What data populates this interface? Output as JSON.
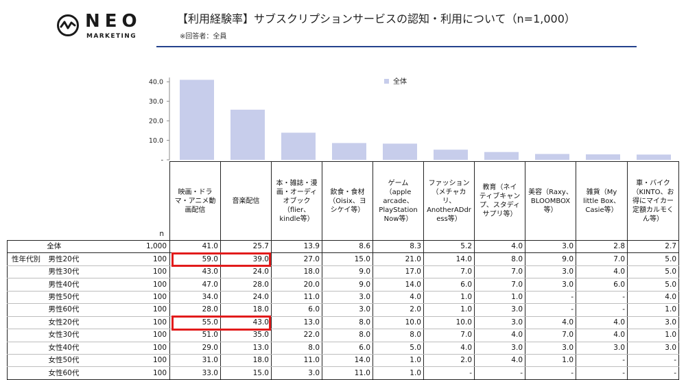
{
  "header": {
    "logo_text": "NEO",
    "logo_sub": "MARKETING",
    "title": "【利用経験率】サブスクリプションサービスの認知・利用について（n=1,000）",
    "subtitle": "※回答者：全員"
  },
  "chart_data": {
    "type": "bar",
    "categories": [
      "映画・ドラマ・アニメ動画配信",
      "音楽配信",
      "本・雑誌・漫画・オーディオブック（flier、kindle等）",
      "飲食・食材（Oisix、ヨシケイ等）",
      "ゲーム（apple arcade、PlayStation Now等）",
      "ファッション（メチャカリ、AnotherADdress等）",
      "教育（ネイティブキャンプ、スタディサプリ等）",
      "美容（Raxy、BLOOMBOX等）",
      "雑貨（My little Box、Casie等）",
      "車・バイク（KINTO、お得にマイカー定額カルモくん等）"
    ],
    "category_lines": [
      [
        "映画・ドラ",
        "マ・アニメ動",
        "画配信"
      ],
      [
        "音楽配信"
      ],
      [
        "本・雑誌・漫",
        "画・オーディ",
        "オブック",
        "（flier、",
        "kindle等）"
      ],
      [
        "飲食・食材",
        "（Oisix、ヨ",
        "シケイ等）"
      ],
      [
        "ゲーム",
        "（apple",
        "arcade、",
        "PlayStation",
        "Now等）"
      ],
      [
        "ファッション",
        "（メチャカ",
        "リ、",
        "AnotherADdr",
        "ess等）"
      ],
      [
        "教育（ネイ",
        "ティブキャン",
        "プ、スタディ",
        "サプリ等）"
      ],
      [
        "美容（Raxy、",
        "BLOOMBOX等）"
      ],
      [
        "雑貨（My",
        "little Box、",
        "Casie等）"
      ],
      [
        "車・バイク",
        "（KINTO、お",
        "得にマイカー",
        "定額カルモく",
        "ん等）"
      ]
    ],
    "series": [
      {
        "name": "全体",
        "values": [
          41.0,
          25.7,
          13.9,
          8.6,
          8.3,
          5.2,
          4.0,
          3.0,
          2.8,
          2.7
        ]
      }
    ],
    "ylim": [
      0,
      45
    ],
    "yticks": [
      0,
      10.0,
      20.0,
      30.0,
      40.0
    ],
    "ytick_labels": [
      "-",
      "10.0",
      "20.0",
      "30.0",
      "40.0"
    ],
    "bar_color": "#c7cdeb",
    "legend": "top-center"
  },
  "table": {
    "n_header": "n",
    "group_label": "性年代別",
    "total_row": {
      "label": "全体",
      "n": "1,000",
      "values": [
        "41.0",
        "25.7",
        "13.9",
        "8.6",
        "8.3",
        "5.2",
        "4.0",
        "3.0",
        "2.8",
        "2.7"
      ]
    },
    "rows": [
      {
        "label": "男性20代",
        "n": "100",
        "values": [
          "59.0",
          "39.0",
          "27.0",
          "15.0",
          "21.0",
          "14.0",
          "8.0",
          "9.0",
          "7.0",
          "5.0"
        ]
      },
      {
        "label": "男性30代",
        "n": "100",
        "values": [
          "43.0",
          "24.0",
          "18.0",
          "9.0",
          "17.0",
          "7.0",
          "7.0",
          "3.0",
          "4.0",
          "5.0"
        ]
      },
      {
        "label": "男性40代",
        "n": "100",
        "values": [
          "47.0",
          "28.0",
          "20.0",
          "9.0",
          "14.0",
          "6.0",
          "7.0",
          "3.0",
          "6.0",
          "5.0"
        ]
      },
      {
        "label": "男性50代",
        "n": "100",
        "values": [
          "34.0",
          "24.0",
          "11.0",
          "3.0",
          "4.0",
          "1.0",
          "1.0",
          "-",
          "-",
          "4.0"
        ]
      },
      {
        "label": "男性60代",
        "n": "100",
        "values": [
          "28.0",
          "18.0",
          "6.0",
          "3.0",
          "2.0",
          "1.0",
          "3.0",
          "-",
          "-",
          "1.0"
        ]
      },
      {
        "label": "女性20代",
        "n": "100",
        "values": [
          "55.0",
          "43.0",
          "13.0",
          "8.0",
          "10.0",
          "10.0",
          "3.0",
          "4.0",
          "4.0",
          "3.0"
        ]
      },
      {
        "label": "女性30代",
        "n": "100",
        "values": [
          "51.0",
          "35.0",
          "22.0",
          "8.0",
          "8.0",
          "7.0",
          "4.0",
          "7.0",
          "4.0",
          "1.0"
        ]
      },
      {
        "label": "女性40代",
        "n": "100",
        "values": [
          "29.0",
          "13.0",
          "8.0",
          "6.0",
          "5.0",
          "4.0",
          "3.0",
          "3.0",
          "3.0",
          "3.0"
        ]
      },
      {
        "label": "女性50代",
        "n": "100",
        "values": [
          "31.0",
          "18.0",
          "11.0",
          "14.0",
          "1.0",
          "2.0",
          "4.0",
          "1.0",
          "-",
          "-"
        ]
      },
      {
        "label": "女性60代",
        "n": "100",
        "values": [
          "33.0",
          "15.0",
          "3.0",
          "11.0",
          "1.0",
          "-",
          "-",
          "-",
          "-",
          "-"
        ]
      }
    ],
    "highlight_color": "#e21b1b"
  }
}
